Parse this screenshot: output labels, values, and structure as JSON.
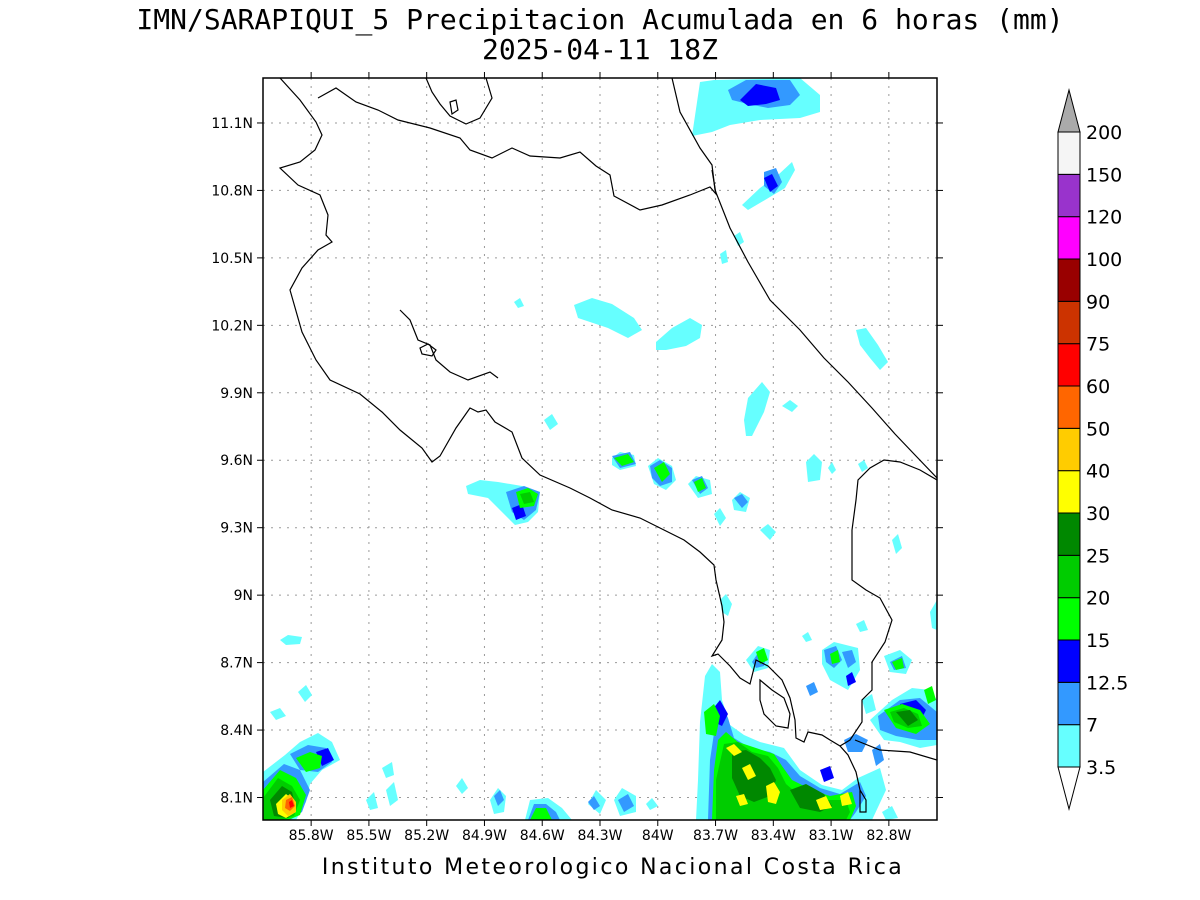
{
  "title_line1": "IMN/SARAPIQUI_5 Precipitacion Acumulada en 6 horas (mm)",
  "title_line2": "2025-04-11 18Z",
  "footer": "Instituto Meteorologico Nacional Costa Rica",
  "map": {
    "lon_range": [
      -86.05,
      -82.55
    ],
    "lat_range": [
      8.0,
      11.3
    ],
    "grid": "dotted",
    "lat_ticks": [
      {
        "value": 8.1,
        "label": "8.1N"
      },
      {
        "value": 8.4,
        "label": "8.4N"
      },
      {
        "value": 8.7,
        "label": "8.7N"
      },
      {
        "value": 9.0,
        "label": "9N"
      },
      {
        "value": 9.3,
        "label": "9.3N"
      },
      {
        "value": 9.6,
        "label": "9.6N"
      },
      {
        "value": 9.9,
        "label": "9.9N"
      },
      {
        "value": 10.2,
        "label": "10.2N"
      },
      {
        "value": 10.5,
        "label": "10.5N"
      },
      {
        "value": 10.8,
        "label": "10.8N"
      },
      {
        "value": 11.1,
        "label": "11.1N"
      }
    ],
    "lon_ticks": [
      {
        "value": -85.8,
        "label": "85.8W"
      },
      {
        "value": -85.5,
        "label": "85.5W"
      },
      {
        "value": -85.2,
        "label": "85.2W"
      },
      {
        "value": -84.9,
        "label": "84.9W"
      },
      {
        "value": -84.6,
        "label": "84.6W"
      },
      {
        "value": -84.3,
        "label": "84.3W"
      },
      {
        "value": -84.0,
        "label": "84W"
      },
      {
        "value": -83.7,
        "label": "83.7W"
      },
      {
        "value": -83.4,
        "label": "83.4W"
      },
      {
        "value": -83.1,
        "label": "83.1W"
      },
      {
        "value": -82.8,
        "label": "82.8W"
      }
    ]
  },
  "legend": {
    "levels": [
      {
        "label": "3.5",
        "color": "#66ffff"
      },
      {
        "label": "7",
        "color": "#3399ff"
      },
      {
        "label": "12.5",
        "color": "#0000ff"
      },
      {
        "label": "15",
        "color": "#00ff00"
      },
      {
        "label": "20",
        "color": "#00cc00"
      },
      {
        "label": "25",
        "color": "#008800"
      },
      {
        "label": "30",
        "color": "#ffff00"
      },
      {
        "label": "40",
        "color": "#ffcc00"
      },
      {
        "label": "50",
        "color": "#ff6600"
      },
      {
        "label": "60",
        "color": "#ff0000"
      },
      {
        "label": "75",
        "color": "#cc3300"
      },
      {
        "label": "90",
        "color": "#990000"
      },
      {
        "label": "100",
        "color": "#ff00ff"
      },
      {
        "label": "120",
        "color": "#9933cc"
      },
      {
        "label": "150",
        "color": "#f5f5f5"
      },
      {
        "label": "200",
        "color": "#aaaaaa"
      }
    ]
  },
  "cells": [
    {
      "lon": -85.87,
      "lat": 8.1,
      "level": 9
    },
    {
      "lon": -85.6,
      "lat": 8.27,
      "level": 4
    },
    {
      "lon": -84.65,
      "lat": 9.42,
      "level": 4
    },
    {
      "lon": -84.11,
      "lat": 9.61,
      "level": 4
    },
    {
      "lon": -83.97,
      "lat": 9.56,
      "level": 4
    },
    {
      "lon": -83.82,
      "lat": 9.5,
      "level": 3
    },
    {
      "lon": -83.65,
      "lat": 9.43,
      "level": 2
    },
    {
      "lon": -83.47,
      "lat": 10.85,
      "level": 2
    },
    {
      "lon": -83.47,
      "lat": 11.23,
      "level": 2
    },
    {
      "lon": -83.47,
      "lat": 8.27,
      "level": 6
    },
    {
      "lon": -83.3,
      "lat": 8.12,
      "level": 7
    },
    {
      "lon": -83.15,
      "lat": 8.1,
      "level": 6
    },
    {
      "lon": -82.7,
      "lat": 8.47,
      "level": 4
    },
    {
      "lon": -83.5,
      "lat": 8.74,
      "level": 4
    }
  ]
}
